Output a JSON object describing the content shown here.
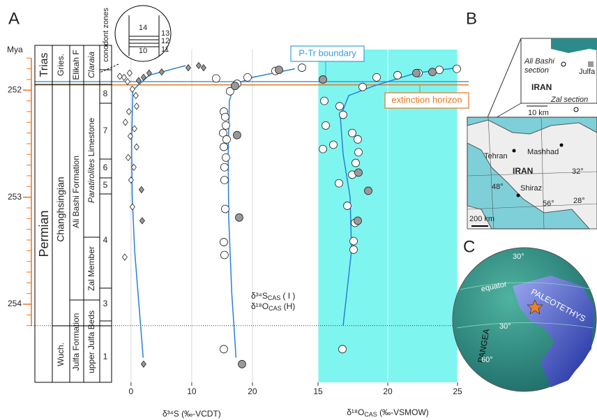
{
  "chart_data": {
    "type": "scatter",
    "panel_letters": [
      "A",
      "B",
      "C"
    ],
    "ylabel": "Mya",
    "ylim": [
      251.62,
      254.73
    ],
    "yticks": [
      252,
      253,
      254
    ],
    "yminorticks": [
      251.7,
      251.8,
      251.9,
      252.0,
      252.1,
      252.2,
      252.3,
      252.4,
      252.5,
      252.6,
      252.7,
      252.8,
      252.9,
      253.0,
      253.1,
      253.2,
      253.3,
      253.4,
      253.5,
      253.6,
      253.7,
      253.8,
      253.9,
      254.0,
      254.1,
      254.2
    ],
    "axis_color": "#e8741e",
    "xlim": [
      -3.2,
      53.9
    ],
    "xticks": [
      0,
      10,
      20
    ],
    "xlabel": [
      "δ³⁴S (‰-VCDT)"
    ],
    "x2lim": [
      0.2,
      25.05
    ],
    "x2ticks": [
      15,
      20,
      25
    ],
    "x2label": [
      "δ¹⁸O",
      "CAS",
      " (‰-VSMOW)"
    ],
    "grid": true,
    "shade": {
      "axis": "x2",
      "range": [
        15,
        25
      ],
      "color": "#7ff5f0"
    },
    "hlines": [
      {
        "label": "P-Tr boundary",
        "y": 251.92,
        "color": "#3a9ee0"
      },
      {
        "label": "extinction horizon",
        "y": 251.95,
        "color": "#e8741e"
      }
    ],
    "dotted_line_y": 254.2,
    "legend": [
      [
        "δ³⁴S",
        "CAS",
        "( I )"
      ],
      [
        "δ¹⁸O",
        "CAS",
        "(H)"
      ]
    ],
    "series": [
      {
        "marker": "diamond",
        "color": "#ffffff",
        "axis": "x",
        "x": [
          -1.15,
          -0.57,
          0.23,
          0.8,
          -0.34,
          0.92,
          -0.92,
          0.57,
          -0.11,
          0.92,
          -0.46,
          0.46,
          0.0,
          0.23,
          -1.03,
          -0.23,
          -1.84
        ],
        "y": [
          251.88,
          251.92,
          251.99,
          252.05,
          252.2,
          252.15,
          252.3,
          252.36,
          252.43,
          252.53,
          252.63,
          252.72,
          252.84,
          253.09,
          253.56,
          251.84,
          251.87
        ]
      },
      {
        "marker": "diamond",
        "color": "#999999",
        "axis": "x",
        "x": [
          1.72,
          1.84,
          2.07,
          2.99,
          5.06,
          9.43,
          11.15,
          11.95,
          2.07,
          1.26
        ],
        "y": [
          252.93,
          253.22,
          254.56,
          251.84,
          251.83,
          251.79,
          251.77,
          251.79,
          251.88,
          251.91
        ]
      },
      {
        "marker": "circle",
        "color": "#ffffff",
        "axis": "x",
        "x": [
          15.29,
          15.52,
          15.63,
          15.17,
          15.75,
          15.29,
          15.63,
          15.4,
          15.4,
          15.52,
          15.29,
          15.4,
          15.29,
          16.32,
          17.47,
          14.02,
          19.2,
          23.79,
          28.16
        ],
        "y": [
          252.2,
          252.25,
          252.33,
          252.4,
          252.46,
          252.53,
          252.63,
          252.72,
          252.84,
          253.11,
          253.42,
          253.54,
          254.42,
          252.01,
          251.94,
          251.89,
          251.88,
          251.82,
          251.79
        ]
      },
      {
        "marker": "circle",
        "color": "#999999",
        "axis": "x",
        "x": [
          17.82,
          18.28,
          17.47,
          17.13,
          24.37
        ],
        "y": [
          253.19,
          254.56,
          252.42,
          251.96,
          251.81
        ]
      },
      {
        "marker": "circle",
        "color": "#ffffff",
        "axis": "x2",
        "x": [
          15.45,
          16.55,
          15.55,
          16.8,
          17.45,
          17.85,
          15.35,
          16.1,
          17.9,
          17.7,
          17.45,
          16.5,
          17.1,
          17.65,
          17.55,
          17.55,
          16.75,
          18.2,
          19.2,
          20.7,
          22.2,
          23.7,
          24.95
        ],
        "y": [
          252.1,
          252.15,
          252.33,
          252.23,
          252.4,
          252.46,
          252.55,
          252.51,
          252.58,
          252.68,
          252.79,
          252.87,
          253.08,
          253.24,
          253.41,
          253.49,
          254.42,
          251.97,
          251.88,
          251.86,
          251.84,
          251.81,
          251.8
        ]
      },
      {
        "marker": "circle",
        "color": "#999999",
        "axis": "x2",
        "x": [
          18.6,
          17.85,
          15.35,
          17.9,
          22.05,
          23.2
        ],
        "y": [
          252.94,
          253.22,
          251.9,
          252.77,
          251.84,
          251.83
        ]
      }
    ],
    "curves": [
      {
        "color": "#2a7fd4",
        "axis": "x",
        "x": [
          9,
          3,
          0.3,
          0.1,
          0.2,
          0.6,
          1.3,
          2.0
        ],
        "y": [
          251.77,
          251.86,
          252.0,
          252.5,
          253.0,
          253.5,
          254.0,
          254.5
        ]
      },
      {
        "color": "#2a7fd4",
        "axis": "x",
        "x": [
          27,
          20,
          17,
          16.2,
          16.0,
          16.1,
          16.6,
          17.3
        ],
        "y": [
          251.8,
          251.88,
          251.95,
          252.1,
          252.6,
          253.2,
          253.9,
          254.5
        ]
      },
      {
        "color": "#2a7fd4",
        "axis": "x2",
        "x": [
          25.0,
          22,
          19,
          17.2,
          16.6,
          16.8,
          17.3,
          17.4,
          16.8
        ],
        "y": [
          251.79,
          251.84,
          251.96,
          252.05,
          252.25,
          252.6,
          253.0,
          253.5,
          254.2
        ]
      }
    ],
    "strat": {
      "system": [
        "Trias",
        "Permian"
      ],
      "stage": [
        "Gries.",
        "Changhsingian",
        "Wuch."
      ],
      "formation": [
        "Elikah F",
        "Ali Bashi Formation",
        "Julfa Formation"
      ],
      "member": [
        "Claraia",
        "Paratirolites",
        "Limestone",
        "Zal Member",
        "upper Julfa Beds"
      ],
      "zones_title": "conodont zones",
      "zones": [
        "8",
        "7",
        "6",
        "5",
        "4",
        "3",
        "1"
      ],
      "inset_zones": [
        "14",
        "13",
        "12",
        "11",
        "10"
      ]
    },
    "map": {
      "inset": [
        "Ali Bashi",
        "section",
        "Julfa",
        "IRAN",
        "Zal section",
        "10 km"
      ],
      "main": [
        "Tehran",
        "Mashhad",
        "IRAN",
        "32°",
        "48°",
        "Shiraz",
        "56°",
        "28°",
        "200 km"
      ]
    },
    "globe": [
      "30°",
      "equator",
      "PALEOTETHYS",
      "PANGEA",
      "30°",
      "60°"
    ]
  }
}
